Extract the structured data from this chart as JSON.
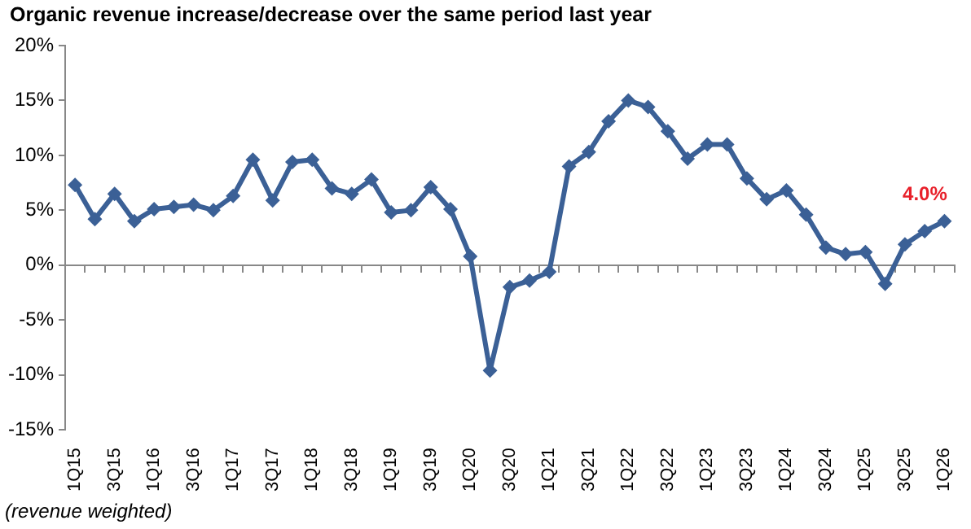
{
  "chart_data": {
    "type": "line",
    "title": "Organic revenue increase/decrease over the same period last year",
    "categories": [
      "1Q15",
      null,
      "3Q15",
      null,
      "1Q16",
      null,
      "3Q16",
      null,
      "1Q17",
      null,
      "3Q17",
      null,
      "1Q18",
      null,
      "3Q18",
      null,
      "1Q19",
      null,
      "3Q19",
      null,
      "1Q20",
      null,
      "3Q20",
      null,
      "1Q21",
      null,
      "3Q21",
      null,
      "1Q22",
      null,
      "3Q22",
      null,
      "1Q23",
      null,
      "3Q23",
      null,
      "1Q24",
      null,
      "3Q24",
      null,
      "1Q25",
      null,
      "3Q25",
      null,
      "1Q26"
    ],
    "series": [
      {
        "color": "#3b6096",
        "values": [
          7.3,
          4.2,
          6.5,
          4.0,
          5.1,
          5.3,
          5.5,
          5.0,
          6.3,
          9.6,
          5.9,
          9.4,
          9.6,
          7.0,
          6.5,
          7.8,
          4.8,
          5.0,
          7.1,
          5.1,
          0.8,
          -9.6,
          -2.0,
          -1.4,
          -0.6,
          9.0,
          10.3,
          13.1,
          15.0,
          14.4,
          12.2,
          9.7,
          11.0,
          11.0,
          7.9,
          6.0,
          6.8,
          4.6,
          1.6,
          1.0,
          1.2,
          -1.7,
          1.9,
          3.1,
          4.0
        ]
      }
    ],
    "ylim": [
      -15,
      20
    ],
    "yticks": [
      {
        "value": -15,
        "label": "-15%"
      },
      {
        "value": -10,
        "label": "-10%"
      },
      {
        "value": -5,
        "label": "-5%"
      },
      {
        "value": 0,
        "label": "0%"
      },
      {
        "value": 5,
        "label": "5%"
      },
      {
        "value": 10,
        "label": "10%"
      },
      {
        "value": 15,
        "label": "15%"
      },
      {
        "value": 20,
        "label": "20%"
      }
    ],
    "legend": false,
    "marker": "diamond",
    "line_style": "solid",
    "annotations": [
      {
        "text": "4.0%",
        "x": "1Q26",
        "y": 4.0
      },
      "(revenue weighted)"
    ]
  }
}
